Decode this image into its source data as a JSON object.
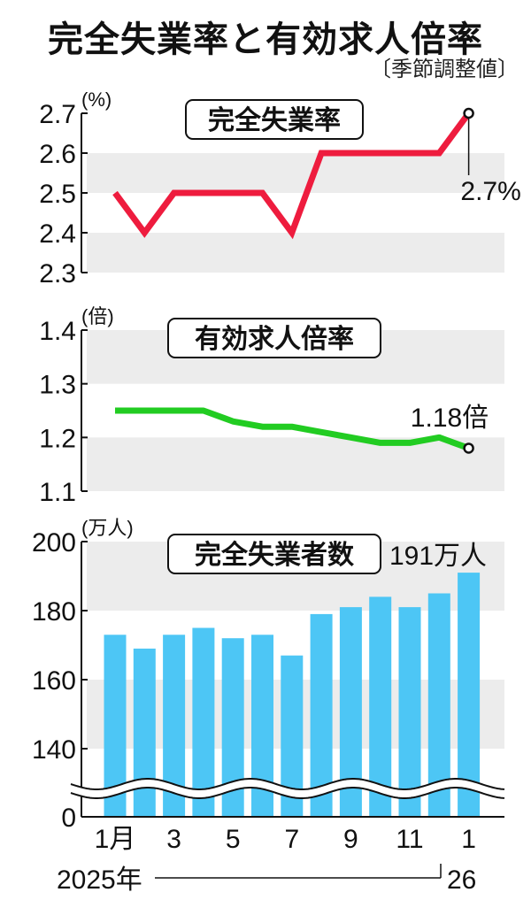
{
  "header": {
    "title": "完全失業率と有効求人倍率",
    "subtitle": "〔季節調整値〕"
  },
  "colors": {
    "unemployment_rate": "#ee1c3e",
    "job_ratio": "#22cc22",
    "unemployed_bars": "#4dc6f5",
    "band": "#ececec"
  },
  "chart_data": [
    {
      "type": "line",
      "title": "完全失業率",
      "ylabel": "(%)",
      "ylim": [
        2.3,
        2.7
      ],
      "yticks": [
        "2.7",
        "2.6",
        "2.5",
        "2.4",
        "2.3"
      ],
      "categories": [
        "2025-1",
        "2025-2",
        "2025-3",
        "2025-4",
        "2025-5",
        "2025-6",
        "2025-7",
        "2025-8",
        "2025-9",
        "2025-10",
        "2025-11",
        "2025-12",
        "2026-1"
      ],
      "values": [
        2.5,
        2.4,
        2.5,
        2.5,
        2.5,
        2.5,
        2.4,
        2.6,
        2.6,
        2.6,
        2.6,
        2.6,
        2.7
      ],
      "annotation": "2.7%"
    },
    {
      "type": "line",
      "title": "有効求人倍率",
      "ylabel": "(倍)",
      "ylim": [
        1.1,
        1.4
      ],
      "yticks": [
        "1.4",
        "1.3",
        "1.2",
        "1.1"
      ],
      "categories": [
        "2025-1",
        "2025-2",
        "2025-3",
        "2025-4",
        "2025-5",
        "2025-6",
        "2025-7",
        "2025-8",
        "2025-9",
        "2025-10",
        "2025-11",
        "2025-12",
        "2026-1"
      ],
      "values": [
        1.25,
        1.25,
        1.25,
        1.25,
        1.23,
        1.22,
        1.22,
        1.21,
        1.2,
        1.19,
        1.19,
        1.2,
        1.18
      ],
      "annotation": "1.18倍"
    },
    {
      "type": "bar",
      "title": "完全失業者数",
      "ylabel": "(万人)",
      "ylim": [
        0,
        200
      ],
      "axis_break": "between 0 and 140",
      "yticks": [
        "200",
        "180",
        "160",
        "140",
        "0"
      ],
      "categories": [
        "2025-1",
        "2025-2",
        "2025-3",
        "2025-4",
        "2025-5",
        "2025-6",
        "2025-7",
        "2025-8",
        "2025-9",
        "2025-10",
        "2025-11",
        "2025-12",
        "2026-1"
      ],
      "values": [
        173,
        169,
        173,
        175,
        172,
        173,
        167,
        179,
        181,
        184,
        181,
        185,
        191
      ],
      "annotation": "191万人"
    }
  ],
  "xaxis": {
    "tick_labels": [
      "1月",
      "3",
      "5",
      "7",
      "9",
      "11",
      "1"
    ],
    "year_start": "2025年",
    "year_end": "26"
  }
}
